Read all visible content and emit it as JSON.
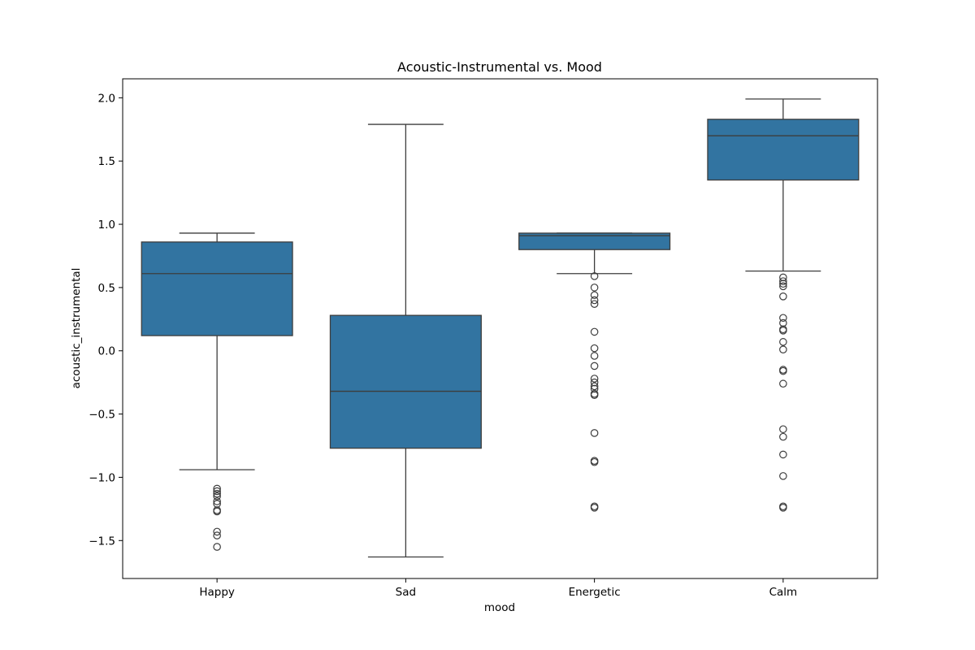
{
  "chart_data": {
    "type": "box",
    "title": "Acoustic-Instrumental vs. Mood",
    "xlabel": "mood",
    "ylabel": "acoustic_instrumental",
    "categories": [
      "Happy",
      "Sad",
      "Energetic",
      "Calm"
    ],
    "ylim": [
      -1.8,
      2.15
    ],
    "yticks": [
      -1.5,
      -1.0,
      -0.5,
      0.0,
      0.5,
      1.0,
      1.5,
      2.0
    ],
    "ytick_labels": [
      "−1.5",
      "−1.0",
      "−0.5",
      "0.0",
      "0.5",
      "1.0",
      "1.5",
      "2.0"
    ],
    "grid": false,
    "colors": {
      "box_fill": "#3274a1",
      "line": "#3d3d3d",
      "axis": "#000000"
    },
    "boxes": [
      {
        "category": "Happy",
        "whisker_low": -0.94,
        "q1": 0.12,
        "median": 0.61,
        "q3": 0.86,
        "whisker_high": 0.93,
        "outliers": [
          -1.09,
          -1.11,
          -1.13,
          -1.15,
          -1.19,
          -1.21,
          -1.26,
          -1.27,
          -1.43,
          -1.46,
          -1.55
        ]
      },
      {
        "category": "Sad",
        "whisker_low": -1.63,
        "q1": -0.77,
        "median": -0.32,
        "q3": 0.28,
        "whisker_high": 1.79,
        "outliers": []
      },
      {
        "category": "Energetic",
        "whisker_low": 0.61,
        "q1": 0.8,
        "median": 0.91,
        "q3": 0.93,
        "whisker_high": 0.93,
        "outliers": [
          0.59,
          0.5,
          0.44,
          0.4,
          0.37,
          0.15,
          0.02,
          -0.04,
          -0.12,
          -0.22,
          -0.25,
          -0.28,
          -0.3,
          -0.34,
          -0.35,
          -0.65,
          -0.87,
          -0.88,
          -1.23,
          -1.24
        ]
      },
      {
        "category": "Calm",
        "whisker_low": 0.63,
        "q1": 1.35,
        "median": 1.7,
        "q3": 1.83,
        "whisker_high": 1.99,
        "outliers": [
          0.58,
          0.55,
          0.53,
          0.51,
          0.43,
          0.26,
          0.22,
          0.17,
          0.16,
          0.07,
          0.01,
          -0.15,
          -0.16,
          -0.26,
          -0.62,
          -0.68,
          -0.82,
          -0.99,
          -1.23,
          -1.24
        ]
      }
    ]
  }
}
